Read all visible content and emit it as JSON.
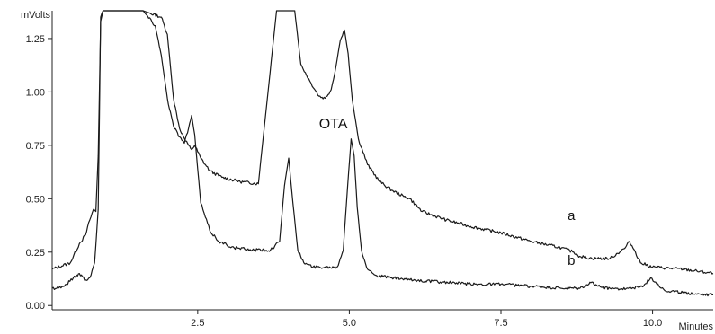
{
  "chart_data": {
    "type": "line",
    "xlabel": "Minutes",
    "ylabel": "mVolts",
    "xlim": [
      0.1,
      11.0
    ],
    "ylim": [
      -0.02,
      1.38
    ],
    "x_ticks": [
      2.5,
      5.0,
      7.5,
      10.0
    ],
    "x_tick_labels": [
      "2.5",
      "5.0",
      "7.5",
      "10.0"
    ],
    "y_ticks": [
      0.0,
      0.25,
      0.5,
      0.75,
      1.0,
      1.25
    ],
    "y_tick_labels": [
      "0.00",
      "0.25",
      "0.50",
      "0.75",
      "1.00",
      "1.25"
    ],
    "grid": false,
    "series": [
      {
        "name": "a",
        "x": [
          0.1,
          0.4,
          0.55,
          0.65,
          0.72,
          0.78,
          0.82,
          0.86,
          0.9,
          0.94,
          0.98,
          1.02,
          1.6,
          1.9,
          2.0,
          2.05,
          2.1,
          2.2,
          2.3,
          2.35,
          2.4,
          2.45,
          2.55,
          2.7,
          2.9,
          3.2,
          3.5,
          3.8,
          4.1,
          4.2,
          4.35,
          4.5,
          4.6,
          4.7,
          4.78,
          4.85,
          4.92,
          4.98,
          5.05,
          5.15,
          5.3,
          5.5,
          5.7,
          5.9,
          6.0,
          6.2,
          6.6,
          7.0,
          7.5,
          8.0,
          8.5,
          8.7,
          8.8,
          9.0,
          9.3,
          9.55,
          9.62,
          9.7,
          9.8,
          10.0,
          10.5,
          11.0
        ],
        "y": [
          0.17,
          0.2,
          0.29,
          0.33,
          0.4,
          0.45,
          0.44,
          0.7,
          1.33,
          1.38,
          1.38,
          1.38,
          1.38,
          1.35,
          1.27,
          1.12,
          0.97,
          0.83,
          0.77,
          0.75,
          0.73,
          0.75,
          0.69,
          0.63,
          0.6,
          0.58,
          0.57,
          1.38,
          1.38,
          1.13,
          1.05,
          0.98,
          0.97,
          1.01,
          1.12,
          1.24,
          1.29,
          1.18,
          0.96,
          0.78,
          0.66,
          0.58,
          0.54,
          0.51,
          0.5,
          0.44,
          0.4,
          0.37,
          0.34,
          0.3,
          0.27,
          0.25,
          0.23,
          0.22,
          0.22,
          0.27,
          0.3,
          0.26,
          0.2,
          0.18,
          0.17,
          0.15
        ]
      },
      {
        "name": "b",
        "x": [
          0.1,
          0.3,
          0.45,
          0.55,
          0.65,
          0.72,
          0.8,
          0.86,
          0.9,
          0.94,
          0.98,
          1.02,
          1.6,
          1.8,
          1.9,
          2.0,
          2.1,
          2.2,
          2.28,
          2.35,
          2.4,
          2.45,
          2.55,
          2.7,
          2.85,
          3.1,
          3.4,
          3.7,
          3.85,
          3.93,
          4.0,
          4.07,
          4.15,
          4.25,
          4.4,
          4.6,
          4.8,
          4.9,
          4.97,
          5.03,
          5.08,
          5.13,
          5.2,
          5.3,
          5.45,
          5.7,
          6.0,
          6.5,
          7.0,
          7.5,
          8.0,
          8.5,
          8.8,
          8.95,
          9.0,
          9.1,
          9.3,
          9.6,
          9.85,
          9.97,
          10.05,
          10.2,
          10.5,
          11.0
        ],
        "y": [
          0.08,
          0.09,
          0.13,
          0.15,
          0.12,
          0.13,
          0.2,
          0.45,
          1.35,
          1.38,
          1.38,
          1.38,
          1.38,
          1.31,
          1.17,
          0.97,
          0.84,
          0.79,
          0.76,
          0.83,
          0.89,
          0.8,
          0.48,
          0.35,
          0.3,
          0.27,
          0.26,
          0.26,
          0.3,
          0.56,
          0.69,
          0.48,
          0.26,
          0.2,
          0.18,
          0.18,
          0.18,
          0.26,
          0.55,
          0.78,
          0.7,
          0.46,
          0.26,
          0.17,
          0.14,
          0.13,
          0.12,
          0.11,
          0.1,
          0.1,
          0.09,
          0.08,
          0.08,
          0.1,
          0.11,
          0.09,
          0.08,
          0.08,
          0.09,
          0.13,
          0.11,
          0.07,
          0.06,
          0.05
        ]
      }
    ],
    "annotations": [
      {
        "text": "OTA",
        "x": 4.5,
        "y": 0.83
      },
      {
        "text": "a",
        "x": 8.6,
        "y": 0.4
      },
      {
        "text": "b",
        "x": 8.6,
        "y": 0.19
      }
    ]
  }
}
